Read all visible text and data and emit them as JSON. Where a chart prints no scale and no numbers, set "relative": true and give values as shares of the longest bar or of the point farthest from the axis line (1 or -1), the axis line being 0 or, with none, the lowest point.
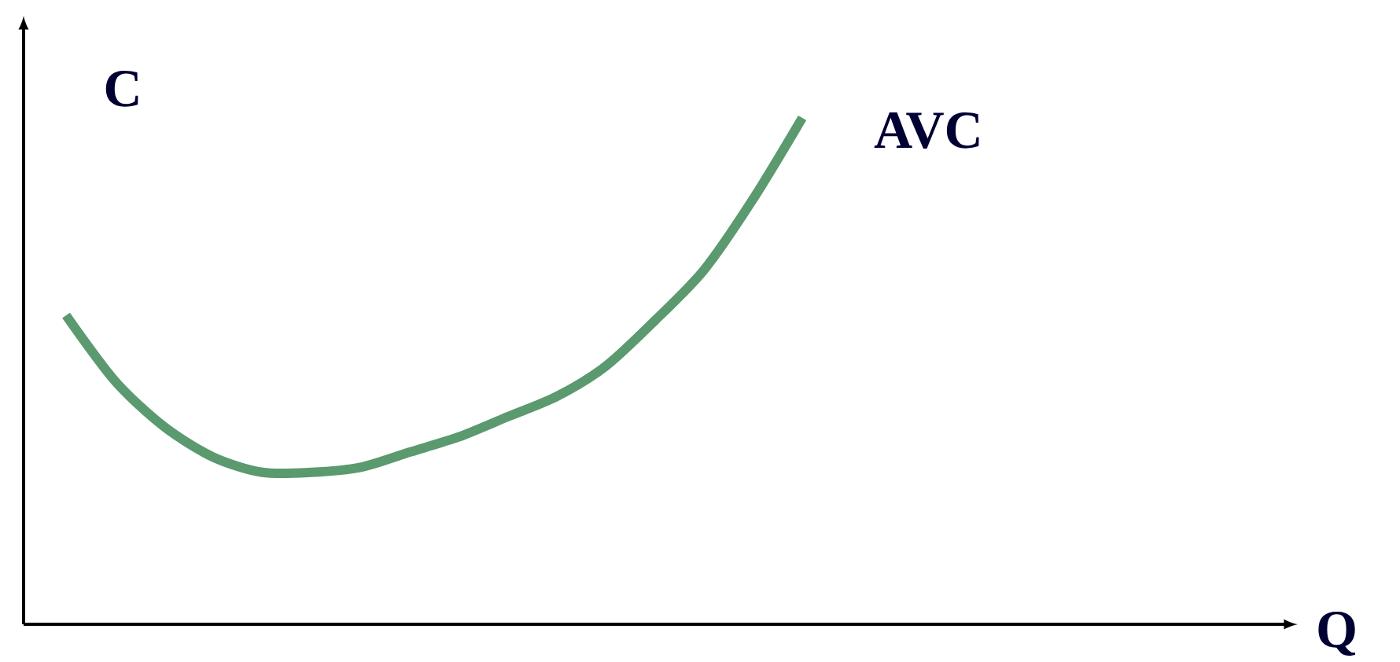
{
  "chart_data": {
    "type": "line",
    "relative": true,
    "annotations": [
      "Q"
    ],
    "ylabel": "C",
    "categories": [
      null,
      null,
      null,
      null,
      null,
      null,
      null,
      null,
      null,
      null,
      null,
      null,
      null,
      null,
      null,
      null
    ],
    "series": [
      {
        "name": "AVC",
        "color": "#5a9a6e",
        "values": [
          0.61,
          0.48,
          0.39,
          0.33,
          0.3,
          0.3,
          0.31,
          0.34,
          0.37,
          0.41,
          0.45,
          0.51,
          0.6,
          0.7,
          0.84,
          1.0
        ]
      }
    ]
  }
}
